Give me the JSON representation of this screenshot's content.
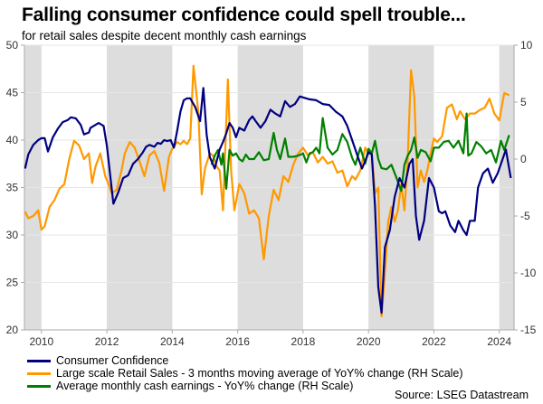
{
  "header": {
    "title": "Falling consumer confidence could spell trouble...",
    "subtitle": "for retail sales despite decent monthly cash earnings"
  },
  "footer": {
    "source": "Source: LSEG Datastream"
  },
  "chart_data": {
    "type": "line",
    "title": "Falling consumer confidence could spell trouble...",
    "subtitle": "for retail sales despite decent monthly cash earnings",
    "xlabel": "",
    "ylabel_left": "",
    "ylabel_right": "",
    "xlim": [
      2009.48,
      2024.45
    ],
    "ylim_left": [
      20,
      50
    ],
    "ylim_right": [
      -15,
      10
    ],
    "x_ticks": [
      2010,
      2012,
      2014,
      2016,
      2018,
      2020,
      2022,
      2024
    ],
    "x_tick_labels": [
      "2010",
      "2012",
      "2014",
      "2016",
      "2018",
      "2020",
      "2022",
      "2024"
    ],
    "y_left_ticks": [
      20,
      25,
      30,
      35,
      40,
      45,
      50
    ],
    "y_left_tick_labels": [
      "20",
      "25",
      "30",
      "35",
      "40",
      "45",
      "50"
    ],
    "y_right_ticks": [
      -15,
      -10,
      -5,
      0,
      5,
      10
    ],
    "y_right_tick_labels": [
      "-15",
      "-10",
      "-5",
      "0",
      "5",
      "10"
    ],
    "grid": true,
    "shaded_periods": [
      [
        2009.48,
        2010
      ],
      [
        2012,
        2014
      ],
      [
        2016,
        2018
      ],
      [
        2020,
        2022
      ],
      [
        2024,
        2024.45
      ]
    ],
    "legend_position": "bottom-left",
    "series": [
      {
        "name": "Consumer Confidence",
        "axis": "left",
        "color": "#000080",
        "x": [
          2009.5,
          2009.6,
          2009.75,
          2009.9,
          2010.0,
          2010.1,
          2010.2,
          2010.35,
          2010.5,
          2010.65,
          2010.8,
          2010.9,
          2011.05,
          2011.2,
          2011.3,
          2011.45,
          2011.5,
          2011.6,
          2011.75,
          2011.9,
          2012.0,
          2012.2,
          2012.35,
          2012.5,
          2012.65,
          2012.8,
          2012.95,
          2013.1,
          2013.2,
          2013.3,
          2013.45,
          2013.55,
          2013.65,
          2013.75,
          2013.85,
          2013.95,
          2014.05,
          2014.15,
          2014.25,
          2014.35,
          2014.45,
          2014.55,
          2014.7,
          2014.85,
          2014.95,
          2015.05,
          2015.15,
          2015.3,
          2015.45,
          2015.55,
          2015.65,
          2015.75,
          2015.85,
          2015.95,
          2016.05,
          2016.2,
          2016.35,
          2016.45,
          2016.55,
          2016.7,
          2016.85,
          2017.0,
          2017.15,
          2017.3,
          2017.45,
          2017.6,
          2017.75,
          2017.9,
          2018.0,
          2018.2,
          2018.4,
          2018.6,
          2018.8,
          2019.0,
          2019.2,
          2019.35,
          2019.5,
          2019.65,
          2019.8,
          2019.9,
          2020.0,
          2020.1,
          2020.2,
          2020.3,
          2020.4,
          2020.5,
          2020.65,
          2020.8,
          2020.95,
          2021.1,
          2021.25,
          2021.35,
          2021.45,
          2021.55,
          2021.7,
          2021.85,
          2022.0,
          2022.15,
          2022.25,
          2022.35,
          2022.5,
          2022.65,
          2022.75,
          2022.9,
          2023.0,
          2023.1,
          2023.25,
          2023.35,
          2023.5,
          2023.65,
          2023.8,
          2023.95,
          2024.1,
          2024.2,
          2024.35
        ],
        "y": [
          37.0,
          38.5,
          39.5,
          40.0,
          40.2,
          40.2,
          38.8,
          40.3,
          41.2,
          41.9,
          42.1,
          42.4,
          42.3,
          41.6,
          40.6,
          40.8,
          41.3,
          41.5,
          41.8,
          41.5,
          39.4,
          33.3,
          34.5,
          36.0,
          36.3,
          37.5,
          38.0,
          38.7,
          39.3,
          39.5,
          39.3,
          39.7,
          39.6,
          40.0,
          39.9,
          40.0,
          39.2,
          41.0,
          43.0,
          44.2,
          44.4,
          44.4,
          43.5,
          42.0,
          45.5,
          40.6,
          38.2,
          37.0,
          39.0,
          39.8,
          40.7,
          41.8,
          41.3,
          40.3,
          41.3,
          41.0,
          42.1,
          42.5,
          42.0,
          41.3,
          42.0,
          43.2,
          42.8,
          42.5,
          44.1,
          43.5,
          43.8,
          44.6,
          44.5,
          44.3,
          44.2,
          43.8,
          43.7,
          43.0,
          42.5,
          41.5,
          40.0,
          38.5,
          37.0,
          37.8,
          38.7,
          38.5,
          33.0,
          24.5,
          21.8,
          28.7,
          30.5,
          34.0,
          36.0,
          35.0,
          37.5,
          38.0,
          32.0,
          29.5,
          31.5,
          36.0,
          35.0,
          32.5,
          32.3,
          32.5,
          31.0,
          30.3,
          31.5,
          30.5,
          30.0,
          31.5,
          31.5,
          35.0,
          36.5,
          37.0,
          35.5,
          36.5,
          38.0,
          39.0,
          36.0
        ],
        "note": "Values estimated from the chart image"
      },
      {
        "name": "Large scale Retail Sales - 3 months moving average of YoY% change (RH Scale)",
        "axis": "right",
        "color": "#FF9900",
        "x": [
          2009.5,
          2009.6,
          2009.75,
          2009.9,
          2010.0,
          2010.1,
          2010.25,
          2010.4,
          2010.55,
          2010.7,
          2010.85,
          2011.0,
          2011.15,
          2011.3,
          2011.45,
          2011.55,
          2011.65,
          2011.8,
          2011.95,
          2012.05,
          2012.15,
          2012.3,
          2012.45,
          2012.55,
          2012.7,
          2012.85,
          2013.0,
          2013.15,
          2013.3,
          2013.45,
          2013.6,
          2013.75,
          2013.9,
          2014.0,
          2014.15,
          2014.25,
          2014.35,
          2014.45,
          2014.55,
          2014.65,
          2014.8,
          2014.9,
          2015.0,
          2015.15,
          2015.25,
          2015.35,
          2015.45,
          2015.55,
          2015.7,
          2015.8,
          2015.9,
          2016.05,
          2016.2,
          2016.35,
          2016.5,
          2016.65,
          2016.8,
          2016.95,
          2017.1,
          2017.25,
          2017.4,
          2017.55,
          2017.7,
          2017.85,
          2018.0,
          2018.15,
          2018.3,
          2018.45,
          2018.6,
          2018.75,
          2018.9,
          2019.05,
          2019.2,
          2019.35,
          2019.5,
          2019.6,
          2019.75,
          2019.9,
          2020.0,
          2020.1,
          2020.2,
          2020.3,
          2020.4,
          2020.5,
          2020.6,
          2020.7,
          2020.8,
          2020.9,
          2021.0,
          2021.1,
          2021.2,
          2021.3,
          2021.4,
          2021.5,
          2021.6,
          2021.7,
          2021.8,
          2021.9,
          2022.0,
          2022.1,
          2022.25,
          2022.4,
          2022.55,
          2022.7,
          2022.8,
          2022.95,
          2023.1,
          2023.25,
          2023.4,
          2023.55,
          2023.7,
          2023.85,
          2024.0,
          2024.15,
          2024.3
        ],
        "y": [
          -4.6,
          -5.2,
          -5.0,
          -4.5,
          -6.2,
          -5.9,
          -4.2,
          -3.6,
          -2.6,
          -2.2,
          0.0,
          1.6,
          1.2,
          0.0,
          0.5,
          -2.1,
          -0.7,
          0.5,
          -1.5,
          -2.2,
          -3.0,
          -2.7,
          -1.0,
          0.5,
          1.5,
          1.0,
          -0.2,
          -1.5,
          0.3,
          0.7,
          -0.3,
          -2.8,
          0.2,
          0.9,
          1.5,
          1.3,
          1.6,
          1.3,
          1.8,
          8.2,
          4.0,
          -3.1,
          -0.8,
          0.5,
          0.3,
          -0.6,
          -1.0,
          -4.5,
          7.0,
          -1.0,
          -4.5,
          -2.2,
          -3.0,
          -4.8,
          -4.5,
          -5.2,
          -8.8,
          -5.0,
          -2.7,
          -3.6,
          -1.5,
          -2.0,
          -0.5,
          0.5,
          1.0,
          0.3,
          0.6,
          -0.3,
          0.2,
          -0.4,
          -0.2,
          -1.2,
          -1.0,
          -2.4,
          -1.5,
          -1.8,
          -1.0,
          1.0,
          0.5,
          0.5,
          -3.0,
          -2.5,
          -13.8,
          -10.0,
          -5.5,
          -4.2,
          -5.5,
          -4.5,
          -2.2,
          -4.5,
          0.0,
          7.8,
          5.5,
          -2.5,
          -1.0,
          -2.0,
          -1.0,
          0.5,
          1.8,
          1.5,
          2.0,
          4.5,
          4.8,
          3.5,
          4.2,
          3.5,
          4.0,
          4.0,
          4.3,
          4.5,
          5.3,
          4.0,
          3.4,
          5.8,
          5.6
        ],
        "note": "Values estimated from the chart image"
      },
      {
        "name": "Average monthly cash earnings - YoY% change (RH Scale)",
        "axis": "right",
        "color": "#008000",
        "x": [
          2015.2,
          2015.3,
          2015.4,
          2015.5,
          2015.55,
          2015.65,
          2015.75,
          2015.85,
          2015.95,
          2016.05,
          2016.15,
          2016.25,
          2016.35,
          2016.5,
          2016.65,
          2016.8,
          2016.95,
          2017.1,
          2017.2,
          2017.3,
          2017.45,
          2017.55,
          2017.7,
          2017.85,
          2018.0,
          2018.1,
          2018.2,
          2018.3,
          2018.4,
          2018.5,
          2018.6,
          2018.75,
          2018.9,
          2019.05,
          2019.2,
          2019.35,
          2019.5,
          2019.6,
          2019.75,
          2019.9,
          2020.0,
          2020.1,
          2020.2,
          2020.3,
          2020.4,
          2020.55,
          2020.7,
          2020.85,
          2021.0,
          2021.1,
          2021.2,
          2021.3,
          2021.4,
          2021.5,
          2021.6,
          2021.75,
          2021.9,
          2022.0,
          2022.15,
          2022.3,
          2022.45,
          2022.6,
          2022.75,
          2022.9,
          2023.0,
          2023.05,
          2023.15,
          2023.3,
          2023.45,
          2023.6,
          2023.75,
          2023.9,
          2024.05,
          2024.15,
          2024.3
        ],
        "y": [
          -0.5,
          0.3,
          0.8,
          -0.5,
          0.5,
          -2.6,
          0.8,
          0.3,
          0.5,
          0.0,
          -0.2,
          0.4,
          0.0,
          0.0,
          0.6,
          -0.1,
          0.0,
          2.3,
          0.8,
          0.0,
          1.8,
          0.2,
          0.2,
          0.3,
          0.5,
          -0.3,
          0.5,
          0.6,
          1.0,
          0.5,
          3.6,
          1.0,
          0.4,
          0.8,
          2.2,
          1.5,
          0.1,
          -0.5,
          1.0,
          -0.4,
          0.9,
          0.5,
          1.6,
          0.0,
          -0.8,
          -0.9,
          -0.5,
          -1.6,
          -2.8,
          -0.5,
          0.3,
          0.8,
          1.9,
          0.1,
          0.8,
          0.6,
          -0.2,
          1.0,
          1.0,
          1.5,
          1.6,
          1.0,
          1.6,
          0.5,
          4.0,
          0.3,
          0.5,
          1.5,
          1.1,
          0.5,
          0.8,
          -0.3,
          1.6,
          0.8,
          2.1
        ],
        "note": "Values estimated from the chart image"
      }
    ]
  }
}
